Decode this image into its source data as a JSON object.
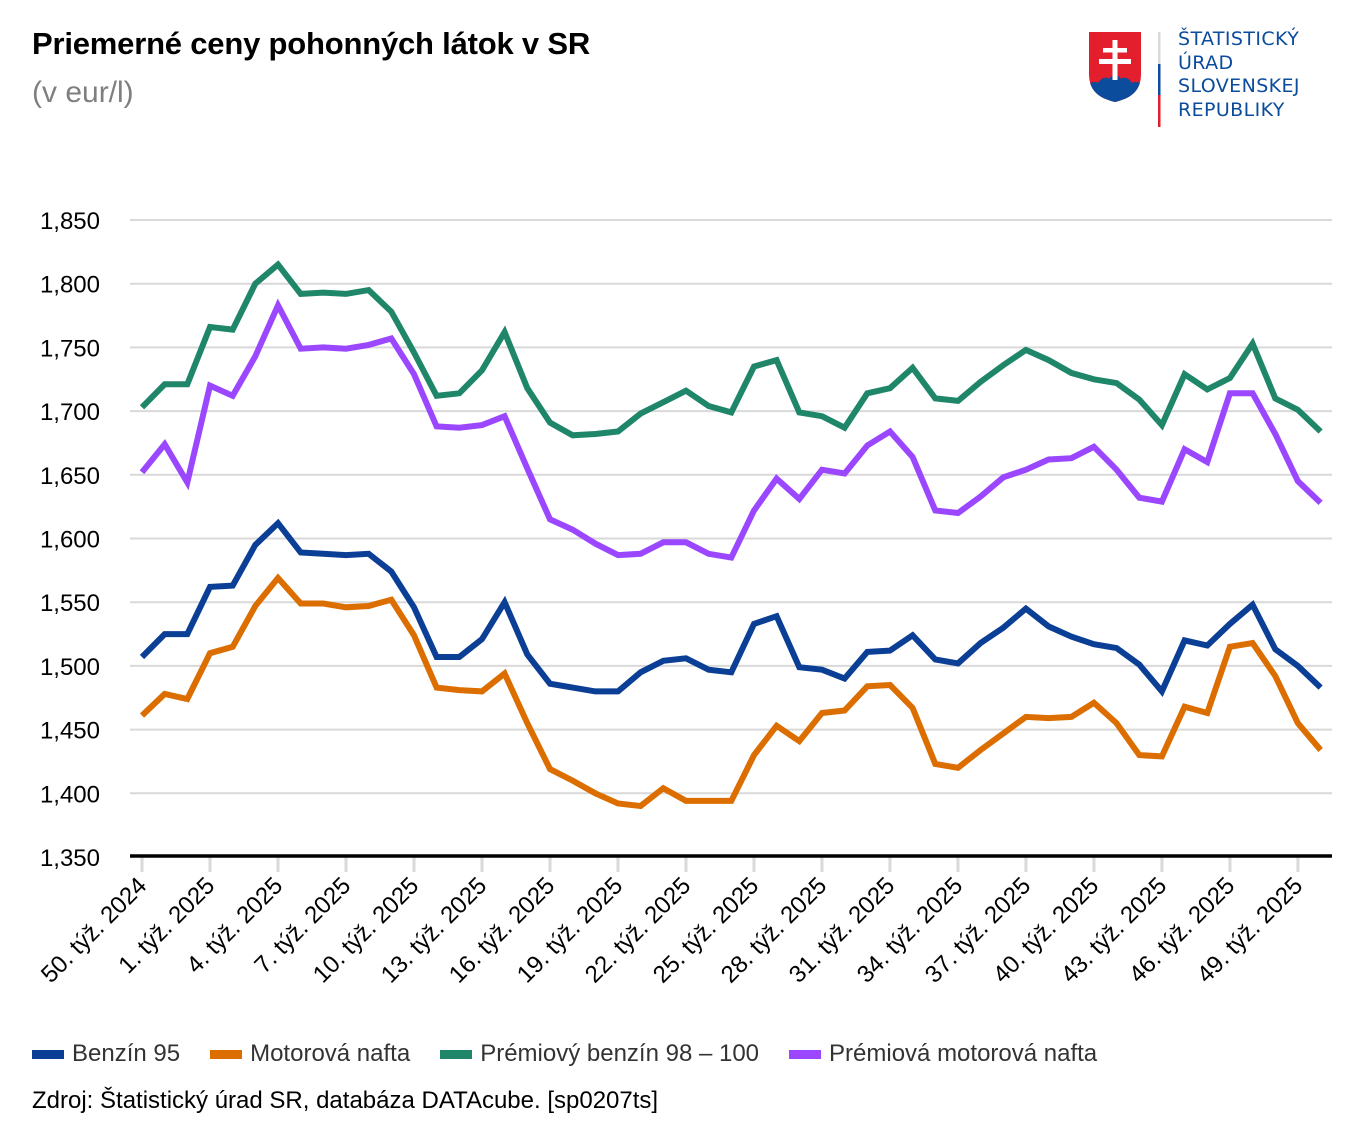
{
  "header": {
    "title": "Priemerné ceny pohonných látok v SR",
    "subtitle": "(v eur/l)"
  },
  "logo": {
    "lines": [
      "ŠTATISTICKÝ",
      "ÚRAD",
      "SLOVENSKEJ",
      "REPUBLIKY"
    ],
    "colors": {
      "red": "#e31e2d",
      "blue": "#0b4c9c",
      "white": "#ffffff",
      "grey": "#d9d9d9"
    }
  },
  "footer": {
    "source": "Zdroj: Štatistický úrad SR, databáza DATAcube. [sp0207ts]"
  },
  "chart_data": {
    "type": "line",
    "title": "Priemerné ceny pohonných látok v SR",
    "subtitle": "(v eur/l)",
    "xlabel": "",
    "ylabel": "",
    "ylim": [
      1.35,
      1.85
    ],
    "yticks": [
      1.35,
      1.4,
      1.45,
      1.5,
      1.55,
      1.6,
      1.65,
      1.7,
      1.75,
      1.8,
      1.85
    ],
    "ytick_labels": [
      "1,350",
      "1,400",
      "1,450",
      "1,500",
      "1,550",
      "1,600",
      "1,650",
      "1,700",
      "1,750",
      "1,800",
      "1,850"
    ],
    "grid": true,
    "legend_position": "bottom",
    "x": [
      "50. týž. 2024",
      "51. týž. 2024",
      "52. týž. 2024",
      "1. týž. 2025",
      "2. týž. 2025",
      "3. týž. 2025",
      "4. týž. 2025",
      "5. týž. 2025",
      "6. týž. 2025",
      "7. týž. 2025",
      "8. týž. 2025",
      "9. týž. 2025",
      "10. týž. 2025",
      "11. týž. 2025",
      "12. týž. 2025",
      "13. týž. 2025",
      "14. týž. 2025",
      "15. týž. 2025",
      "16. týž. 2025",
      "17. týž. 2025",
      "18. týž. 2025",
      "19. týž. 2025",
      "20. týž. 2025",
      "21. týž. 2025",
      "22. týž. 2025",
      "23. týž. 2025",
      "24. týž. 2025",
      "25. týž. 2025",
      "26. týž. 2025",
      "27. týž. 2025",
      "28. týž. 2025",
      "29. týž. 2025",
      "30. týž. 2025",
      "31. týž. 2025",
      "32. týž. 2025",
      "33. týž. 2025",
      "34. týž. 2025",
      "35. týž. 2025",
      "36. týž. 2025",
      "37. týž. 2025",
      "38. týž. 2025",
      "39. týž. 2025",
      "40. týž. 2025",
      "41. týž. 2025",
      "42. týž. 2025",
      "43. týž. 2025",
      "44. týž. 2025",
      "45. týž. 2025",
      "46. týž. 2025",
      "47. týž. 2025",
      "48. týž. 2025",
      "49. týž. 2025",
      "50. týž. 2025"
    ],
    "xtick_labels": [
      "50. týž. 2024",
      "1. týž. 2025",
      "4. týž. 2025",
      "7. týž. 2025",
      "10. týž. 2025",
      "13. týž. 2025",
      "16. týž. 2025",
      "19. týž. 2025",
      "22. týž. 2025",
      "25. týž. 2025",
      "28. týž. 2025",
      "31. týž. 2025",
      "34. týž. 2025",
      "37. týž. 2025",
      "40. týž. 2025",
      "43. týž. 2025",
      "46. týž. 2025",
      "49. týž. 2025"
    ],
    "xtick_every": 3,
    "series": [
      {
        "name": "Benzín 95",
        "color": "#0b3f96",
        "values": [
          1.507,
          1.525,
          1.525,
          1.562,
          1.563,
          1.595,
          1.612,
          1.589,
          1.588,
          1.587,
          1.588,
          1.574,
          1.546,
          1.507,
          1.507,
          1.521,
          1.55,
          1.509,
          1.486,
          1.483,
          1.48,
          1.48,
          1.495,
          1.504,
          1.506,
          1.497,
          1.495,
          1.533,
          1.539,
          1.499,
          1.497,
          1.49,
          1.511,
          1.512,
          1.524,
          1.505,
          1.502,
          1.518,
          1.53,
          1.545,
          1.531,
          1.523,
          1.517,
          1.514,
          1.501,
          1.48,
          1.52,
          1.516,
          1.533,
          1.548,
          1.513,
          1.5,
          1.483
        ]
      },
      {
        "name": "Motorová nafta",
        "color": "#dc6e00",
        "values": [
          1.461,
          1.478,
          1.474,
          1.51,
          1.515,
          1.547,
          1.569,
          1.549,
          1.549,
          1.546,
          1.547,
          1.552,
          1.524,
          1.483,
          1.481,
          1.48,
          1.494,
          1.455,
          1.419,
          1.41,
          1.4,
          1.392,
          1.39,
          1.404,
          1.394,
          1.394,
          1.394,
          1.43,
          1.453,
          1.441,
          1.463,
          1.465,
          1.484,
          1.485,
          1.467,
          1.423,
          1.42,
          1.434,
          1.447,
          1.46,
          1.459,
          1.46,
          1.471,
          1.455,
          1.43,
          1.429,
          1.468,
          1.463,
          1.515,
          1.518,
          1.492,
          1.455,
          1.434
        ]
      },
      {
        "name": "Prémiový benzín 98 – 100",
        "color": "#1f866a",
        "values": [
          1.703,
          1.721,
          1.721,
          1.766,
          1.764,
          1.8,
          1.815,
          1.792,
          1.793,
          1.792,
          1.795,
          1.778,
          1.746,
          1.712,
          1.714,
          1.732,
          1.762,
          1.718,
          1.691,
          1.681,
          1.682,
          1.684,
          1.698,
          1.707,
          1.716,
          1.704,
          1.699,
          1.735,
          1.74,
          1.699,
          1.696,
          1.687,
          1.714,
          1.718,
          1.734,
          1.71,
          1.708,
          1.723,
          1.736,
          1.748,
          1.74,
          1.73,
          1.725,
          1.722,
          1.709,
          1.689,
          1.729,
          1.717,
          1.726,
          1.753,
          1.71,
          1.701,
          1.684
        ]
      },
      {
        "name": "Prémiová motorová nafta",
        "color": "#9a47ff",
        "values": [
          1.652,
          1.674,
          1.644,
          1.72,
          1.712,
          1.743,
          1.783,
          1.749,
          1.75,
          1.749,
          1.752,
          1.757,
          1.729,
          1.688,
          1.687,
          1.689,
          1.696,
          1.655,
          1.615,
          1.607,
          1.596,
          1.587,
          1.588,
          1.597,
          1.597,
          1.588,
          1.585,
          1.622,
          1.647,
          1.631,
          1.654,
          1.651,
          1.673,
          1.684,
          1.664,
          1.622,
          1.62,
          1.633,
          1.648,
          1.654,
          1.662,
          1.663,
          1.672,
          1.654,
          1.632,
          1.629,
          1.67,
          1.66,
          1.714,
          1.714,
          1.682,
          1.645,
          1.628
        ]
      }
    ]
  }
}
